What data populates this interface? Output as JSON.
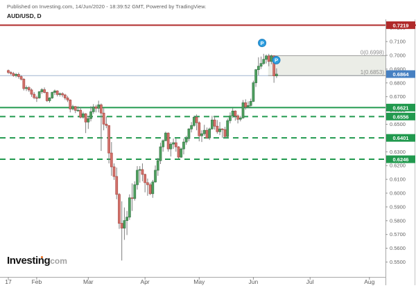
{
  "header": {
    "published_line": "Published on Investing.com, 14/Jun/2020 - 18:39:52 GMT, Powered by TradingView.",
    "symbol_title": "AUD/USD, D"
  },
  "watermark": {
    "brand": "Investing",
    "suffix": "com"
  },
  "colors": {
    "up_fill": "#4fa15f",
    "up_border": "#39794a",
    "down_fill": "#d4736c",
    "down_border": "#ad4f4a",
    "wick": "#7e7e7e",
    "resistance_red": "#b02a2a",
    "support_green": "#21994e",
    "current_price_bg": "#4680c2",
    "fib_line_blue": "#9fb4cf",
    "zone_fill": "rgba(130,142,106,0.16)",
    "zone_border": "#999999",
    "zone_label_text": "#8c8c8c",
    "axis_text": "#646464",
    "axis_line": "#a8a8a8",
    "marker_blue": "#2e9fe0",
    "marker_border": "#1f7fbe"
  },
  "chart_data": {
    "type": "candlestick",
    "symbol": "AUD/USD",
    "interval": "D",
    "title": "AUD/USD, D",
    "layout": {
      "x0": 12,
      "step": 3.72,
      "plot_top": 28,
      "plot_bottom": 400,
      "plot_right": 556,
      "price_top": 0.7261,
      "price_bottom": 0.5392,
      "grid": false,
      "scale_position": "right"
    },
    "y_ticks": [
      "0.7200",
      "0.7100",
      "0.7000",
      "0.6900",
      "0.6800",
      "0.6700",
      "0.6600",
      "0.6500",
      "0.6400",
      "0.6300",
      "0.6200",
      "0.6100",
      "0.6000",
      "0.5900",
      "0.5800",
      "0.5700",
      "0.5600",
      "0.5500"
    ],
    "x_labels": [
      {
        "index": 0,
        "label": "17"
      },
      {
        "index": 11,
        "label": "Feb"
      },
      {
        "index": 31,
        "label": "Mar"
      },
      {
        "index": 53,
        "label": "Apr"
      },
      {
        "index": 74,
        "label": "May"
      },
      {
        "index": 95,
        "label": "Jun"
      },
      {
        "index": 117,
        "label": "Jul"
      },
      {
        "index": 140,
        "label": "Aug"
      }
    ],
    "candles": [
      [
        0.689,
        0.6897,
        0.6865,
        0.6876
      ],
      [
        0.6876,
        0.6886,
        0.6858,
        0.6868
      ],
      [
        0.6868,
        0.688,
        0.6845,
        0.6853
      ],
      [
        0.6853,
        0.6872,
        0.684,
        0.6862
      ],
      [
        0.6862,
        0.6875,
        0.6831,
        0.6846
      ],
      [
        0.6846,
        0.6856,
        0.6818,
        0.6827
      ],
      [
        0.6827,
        0.6835,
        0.6745,
        0.6759
      ],
      [
        0.6759,
        0.6781,
        0.6741,
        0.6766
      ],
      [
        0.6766,
        0.6776,
        0.6735,
        0.6749
      ],
      [
        0.6749,
        0.676,
        0.6699,
        0.6718
      ],
      [
        0.6718,
        0.6734,
        0.6682,
        0.6693
      ],
      [
        0.6693,
        0.6707,
        0.6662,
        0.6691
      ],
      [
        0.6691,
        0.6741,
        0.6686,
        0.6736
      ],
      [
        0.6736,
        0.6762,
        0.6721,
        0.6751
      ],
      [
        0.6751,
        0.6767,
        0.6724,
        0.6731
      ],
      [
        0.6731,
        0.6736,
        0.6662,
        0.6671
      ],
      [
        0.6671,
        0.6696,
        0.6657,
        0.6691
      ],
      [
        0.6691,
        0.6738,
        0.6684,
        0.6731
      ],
      [
        0.6731,
        0.6752,
        0.6712,
        0.6742
      ],
      [
        0.6742,
        0.6747,
        0.6702,
        0.6716
      ],
      [
        0.6716,
        0.6731,
        0.6701,
        0.6722
      ],
      [
        0.6722,
        0.6732,
        0.6696,
        0.6713
      ],
      [
        0.6713,
        0.6721,
        0.6676,
        0.6691
      ],
      [
        0.6691,
        0.6706,
        0.6661,
        0.6676
      ],
      [
        0.6676,
        0.6681,
        0.6586,
        0.6611
      ],
      [
        0.6611,
        0.6641,
        0.6601,
        0.6629
      ],
      [
        0.6629,
        0.6632,
        0.6581,
        0.6601
      ],
      [
        0.6601,
        0.6631,
        0.6591,
        0.6602
      ],
      [
        0.6602,
        0.6621,
        0.6542,
        0.6551
      ],
      [
        0.6551,
        0.6591,
        0.6541,
        0.6576
      ],
      [
        0.6576,
        0.6581,
        0.6436,
        0.6516
      ],
      [
        0.6516,
        0.6561,
        0.6466,
        0.6541
      ],
      [
        0.6541,
        0.6631,
        0.6521,
        0.6591
      ],
      [
        0.6591,
        0.6646,
        0.6576,
        0.6626
      ],
      [
        0.6626,
        0.6641,
        0.6586,
        0.6616
      ],
      [
        0.6616,
        0.6671,
        0.6586,
        0.6641
      ],
      [
        0.6641,
        0.6651,
        0.6306,
        0.6581
      ],
      [
        0.6581,
        0.6616,
        0.6456,
        0.6501
      ],
      [
        0.6501,
        0.6556,
        0.6471,
        0.6491
      ],
      [
        0.6491,
        0.6492,
        0.6216,
        0.6291
      ],
      [
        0.6291,
        0.6371,
        0.6126,
        0.6191
      ],
      [
        0.6191,
        0.6216,
        0.6096,
        0.6121
      ],
      [
        0.6121,
        0.6186,
        0.5956,
        0.5991
      ],
      [
        0.5991,
        0.6001,
        0.5741,
        0.5781
      ],
      [
        0.5781,
        0.5941,
        0.5511,
        0.5746
      ],
      [
        0.5746,
        0.5896,
        0.5661,
        0.5801
      ],
      [
        0.5801,
        0.5871,
        0.5696,
        0.5826
      ],
      [
        0.5826,
        0.5991,
        0.5806,
        0.5966
      ],
      [
        0.5966,
        0.6071,
        0.5871,
        0.5961
      ],
      [
        0.5961,
        0.6086,
        0.5946,
        0.6061
      ],
      [
        0.6061,
        0.6196,
        0.6026,
        0.6166
      ],
      [
        0.6166,
        0.6196,
        0.6076,
        0.6171
      ],
      [
        0.6171,
        0.6216,
        0.6086,
        0.6136
      ],
      [
        0.6136,
        0.6141,
        0.6006,
        0.6076
      ],
      [
        0.6076,
        0.6106,
        0.5981,
        0.6061
      ],
      [
        0.6061,
        0.6076,
        0.5986,
        0.5996
      ],
      [
        0.5996,
        0.6096,
        0.5966,
        0.6081
      ],
      [
        0.6081,
        0.6201,
        0.6076,
        0.6166
      ],
      [
        0.6166,
        0.6256,
        0.6126,
        0.6236
      ],
      [
        0.6236,
        0.6366,
        0.6211,
        0.6336
      ],
      [
        0.6336,
        0.6391,
        0.6301,
        0.6381
      ],
      [
        0.6381,
        0.6446,
        0.6376,
        0.6436
      ],
      [
        0.6436,
        0.6441,
        0.6301,
        0.6321
      ],
      [
        0.6321,
        0.6371,
        0.6266,
        0.6356
      ],
      [
        0.6356,
        0.6396,
        0.6321,
        0.6366
      ],
      [
        0.6366,
        0.6396,
        0.6301,
        0.6336
      ],
      [
        0.6336,
        0.6341,
        0.6251,
        0.6261
      ],
      [
        0.6261,
        0.6331,
        0.6256,
        0.6321
      ],
      [
        0.6321,
        0.6396,
        0.6281,
        0.6371
      ],
      [
        0.6371,
        0.6416,
        0.6351,
        0.6396
      ],
      [
        0.6396,
        0.6471,
        0.6376,
        0.6466
      ],
      [
        0.6466,
        0.6516,
        0.6441,
        0.6491
      ],
      [
        0.6491,
        0.6561,
        0.6481,
        0.6551
      ],
      [
        0.6551,
        0.6571,
        0.6456,
        0.6511
      ],
      [
        0.6511,
        0.6521,
        0.6376,
        0.6416
      ],
      [
        0.6416,
        0.6456,
        0.6371,
        0.6431
      ],
      [
        0.6431,
        0.6496,
        0.6416,
        0.6456
      ],
      [
        0.6456,
        0.6476,
        0.6396,
        0.6401
      ],
      [
        0.6401,
        0.6476,
        0.6386,
        0.6466
      ],
      [
        0.6466,
        0.6561,
        0.6461,
        0.6531
      ],
      [
        0.6531,
        0.6561,
        0.6461,
        0.6486
      ],
      [
        0.6486,
        0.6531,
        0.6431,
        0.6446
      ],
      [
        0.6446,
        0.6516,
        0.6421,
        0.6466
      ],
      [
        0.6466,
        0.6471,
        0.6401,
        0.6461
      ],
      [
        0.6461,
        0.6481,
        0.6401,
        0.6411
      ],
      [
        0.6411,
        0.6541,
        0.6406,
        0.6526
      ],
      [
        0.6526,
        0.6586,
        0.6506,
        0.6561
      ],
      [
        0.6561,
        0.6616,
        0.6546,
        0.6596
      ],
      [
        0.6596,
        0.6601,
        0.6526,
        0.6561
      ],
      [
        0.6561,
        0.6571,
        0.6506,
        0.6536
      ],
      [
        0.6536,
        0.6561,
        0.6521,
        0.6546
      ],
      [
        0.6546,
        0.6676,
        0.6541,
        0.6656
      ],
      [
        0.6656,
        0.6681,
        0.6606,
        0.6626
      ],
      [
        0.6626,
        0.6666,
        0.6616,
        0.6636
      ],
      [
        0.6636,
        0.6686,
        0.6626,
        0.6666
      ],
      [
        0.6666,
        0.6816,
        0.6661,
        0.6801
      ],
      [
        0.6801,
        0.6901,
        0.6771,
        0.6896
      ],
      [
        0.6896,
        0.6986,
        0.6856,
        0.6921
      ],
      [
        0.6921,
        0.6991,
        0.6901,
        0.6941
      ],
      [
        0.6941,
        0.7011,
        0.6931,
        0.6971
      ],
      [
        0.6971,
        0.7006,
        0.6941,
        0.6996
      ],
      [
        0.6996,
        0.7011,
        0.6921,
        0.6956
      ],
      [
        0.6956,
        0.7005,
        0.6936,
        0.6996
      ],
      [
        0.6996,
        0.6998,
        0.6801,
        0.6851
      ],
      [
        0.6851,
        0.6906,
        0.6836,
        0.6864
      ]
    ],
    "levels": [
      {
        "price": 0.7219,
        "label": "0.7219",
        "style": "solid",
        "role": "resistance",
        "width": 2,
        "full_width": true
      },
      {
        "price": 0.6621,
        "label": "0.6621",
        "style": "solid",
        "role": "support",
        "width": 2,
        "full_width": false
      },
      {
        "price": 0.6556,
        "label": "0.6556",
        "style": "dashed",
        "role": "support",
        "width": 2,
        "full_width": false
      },
      {
        "price": 0.6401,
        "label": "0.6401",
        "style": "dashed",
        "role": "support",
        "width": 2,
        "full_width": false
      },
      {
        "price": 0.6246,
        "label": "0.6246",
        "style": "dashed",
        "role": "support",
        "width": 2,
        "full_width": false
      }
    ],
    "current_price": {
      "value": 0.6864,
      "label": "0.6864"
    },
    "fib_retracement": {
      "top": 0.6998,
      "bottom": 0.6853,
      "level0_label": "0(0.6998)",
      "level1_label": "1(0.6853)",
      "start_index": 101,
      "extend_line_left": true
    },
    "markers": [
      {
        "glyph": "P",
        "index": 98.4,
        "price": 0.709
      },
      {
        "glyph": "P",
        "index": 103.9,
        "price": 0.6965
      }
    ]
  }
}
